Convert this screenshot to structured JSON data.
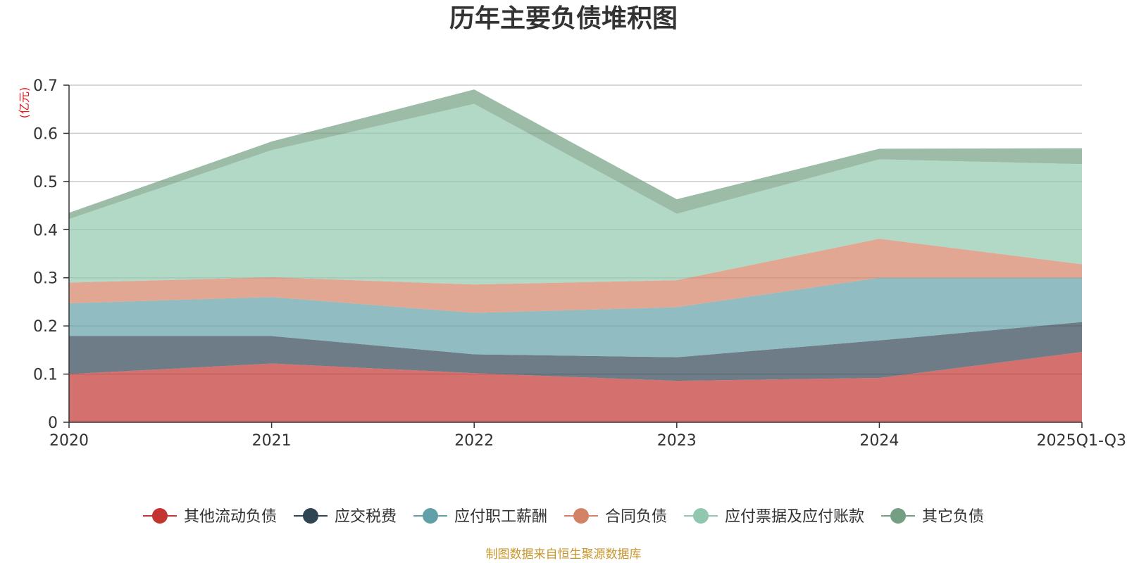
{
  "chart_data": {
    "type": "area",
    "stacked": true,
    "title": "历年主要负债堆积图",
    "y_unit": "(亿元)",
    "categories": [
      "2020",
      "2021",
      "2022",
      "2023",
      "2024",
      "2025Q1-Q3"
    ],
    "ylim": [
      0,
      0.7
    ],
    "yticks": [
      0,
      0.1,
      0.2,
      0.3,
      0.4,
      0.5,
      0.6,
      0.7
    ],
    "ytick_labels": [
      "0",
      "0.1",
      "0.2",
      "0.3",
      "0.4",
      "0.5",
      "0.6",
      "0.7"
    ],
    "grid": true,
    "legend_position": "bottom",
    "series": [
      {
        "name": "其他流动负债",
        "color": "#c23531",
        "values": [
          0.1,
          0.122,
          0.102,
          0.086,
          0.092,
          0.146
        ]
      },
      {
        "name": "应交税费",
        "color": "#2f4554",
        "values": [
          0.079,
          0.057,
          0.039,
          0.049,
          0.078,
          0.062
        ]
      },
      {
        "name": "应付职工薪酬",
        "color": "#61a0a8",
        "values": [
          0.068,
          0.081,
          0.086,
          0.104,
          0.13,
          0.092
        ]
      },
      {
        "name": "合同负债",
        "color": "#d48265",
        "values": [
          0.043,
          0.041,
          0.059,
          0.056,
          0.081,
          0.028
        ]
      },
      {
        "name": "应付票据及应付账款",
        "color": "#91c7ae",
        "values": [
          0.132,
          0.264,
          0.375,
          0.138,
          0.165,
          0.208
        ]
      },
      {
        "name": "其它负债",
        "color": "#749f83",
        "values": [
          0.013,
          0.018,
          0.03,
          0.03,
          0.022,
          0.033
        ]
      }
    ],
    "source_note": "制图数据来自恒生聚源数据库"
  }
}
